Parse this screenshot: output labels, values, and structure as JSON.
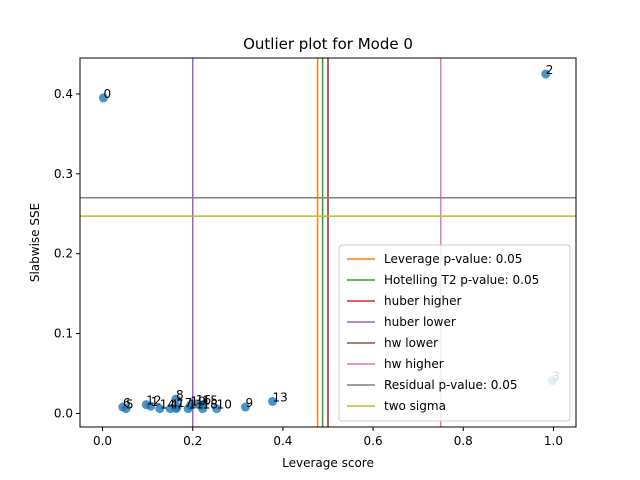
{
  "chart_data": {
    "type": "scatter",
    "title": "Outlier plot for Mode 0",
    "xlabel": "Leverage score",
    "ylabel": "Slabwise SSE",
    "xlim": [
      -0.05,
      1.05
    ],
    "ylim": [
      -0.017,
      0.445
    ],
    "xticks": [
      0.0,
      0.2,
      0.4,
      0.6,
      0.8,
      1.0
    ],
    "xtick_labels": [
      "0.0",
      "0.2",
      "0.4",
      "0.6",
      "0.8",
      "1.0"
    ],
    "yticks": [
      0.0,
      0.1,
      0.2,
      0.3,
      0.4
    ],
    "ytick_labels": [
      "0.0",
      "0.1",
      "0.2",
      "0.3",
      "0.4"
    ],
    "grid": false,
    "legend_position": "lower-right",
    "point_color": "#1f77b4",
    "points": [
      {
        "label": "0",
        "x": 0.002,
        "y": 0.395
      },
      {
        "label": "1",
        "x": 0.107,
        "y": 0.009
      },
      {
        "label": "2",
        "x": 0.983,
        "y": 0.425
      },
      {
        "label": "3",
        "x": 0.997,
        "y": 0.041
      },
      {
        "label": "4",
        "x": 0.15,
        "y": 0.006
      },
      {
        "label": "5",
        "x": 0.052,
        "y": 0.006
      },
      {
        "label": "6",
        "x": 0.045,
        "y": 0.008
      },
      {
        "label": "7",
        "x": 0.163,
        "y": 0.006
      },
      {
        "label": "8",
        "x": 0.163,
        "y": 0.018
      },
      {
        "label": "9",
        "x": 0.317,
        "y": 0.008
      },
      {
        "label": "10",
        "x": 0.253,
        "y": 0.006
      },
      {
        "label": "11",
        "x": 0.19,
        "y": 0.006
      },
      {
        "label": "12",
        "x": 0.097,
        "y": 0.011
      },
      {
        "label": "13",
        "x": 0.377,
        "y": 0.015
      },
      {
        "label": "14",
        "x": 0.127,
        "y": 0.006
      },
      {
        "label": "15",
        "x": 0.222,
        "y": 0.011
      },
      {
        "label": "16",
        "x": 0.207,
        "y": 0.012
      },
      {
        "label": "17",
        "x": 0.165,
        "y": 0.008
      },
      {
        "label": "18",
        "x": 0.222,
        "y": 0.006
      },
      {
        "label": "19",
        "x": 0.195,
        "y": 0.01
      }
    ],
    "vertical_lines": [
      {
        "name": "Leverage p-value: 0.05",
        "x": 0.477,
        "color": "#ff7f0e"
      },
      {
        "name": "Hotelling T2 p-value: 0.05",
        "x": 0.488,
        "color": "#2ca02c"
      },
      {
        "name": "huber higher",
        "x": 0.5,
        "color": "#d62728"
      },
      {
        "name": "huber lower",
        "x": 0.2,
        "color": "#9467bd"
      },
      {
        "name": "hw lower",
        "x": 0.5,
        "color": "#8c564b"
      },
      {
        "name": "hw higher",
        "x": 0.75,
        "color": "#e377c2"
      }
    ],
    "horizontal_lines": [
      {
        "name": "Residual p-value: 0.05",
        "y": 0.27,
        "color": "#7f7f7f"
      },
      {
        "name": "two sigma",
        "y": 0.247,
        "color": "#bcbd22"
      }
    ],
    "legend": [
      {
        "name": "Leverage p-value: 0.05",
        "color": "#ff7f0e"
      },
      {
        "name": "Hotelling T2 p-value: 0.05",
        "color": "#2ca02c"
      },
      {
        "name": "huber higher",
        "color": "#d62728"
      },
      {
        "name": "huber lower",
        "color": "#9467bd"
      },
      {
        "name": "hw lower",
        "color": "#8c564b"
      },
      {
        "name": "hw higher",
        "color": "#e377c2"
      },
      {
        "name": "Residual p-value: 0.05",
        "color": "#7f7f7f"
      },
      {
        "name": "two sigma",
        "color": "#bcbd22"
      }
    ]
  }
}
